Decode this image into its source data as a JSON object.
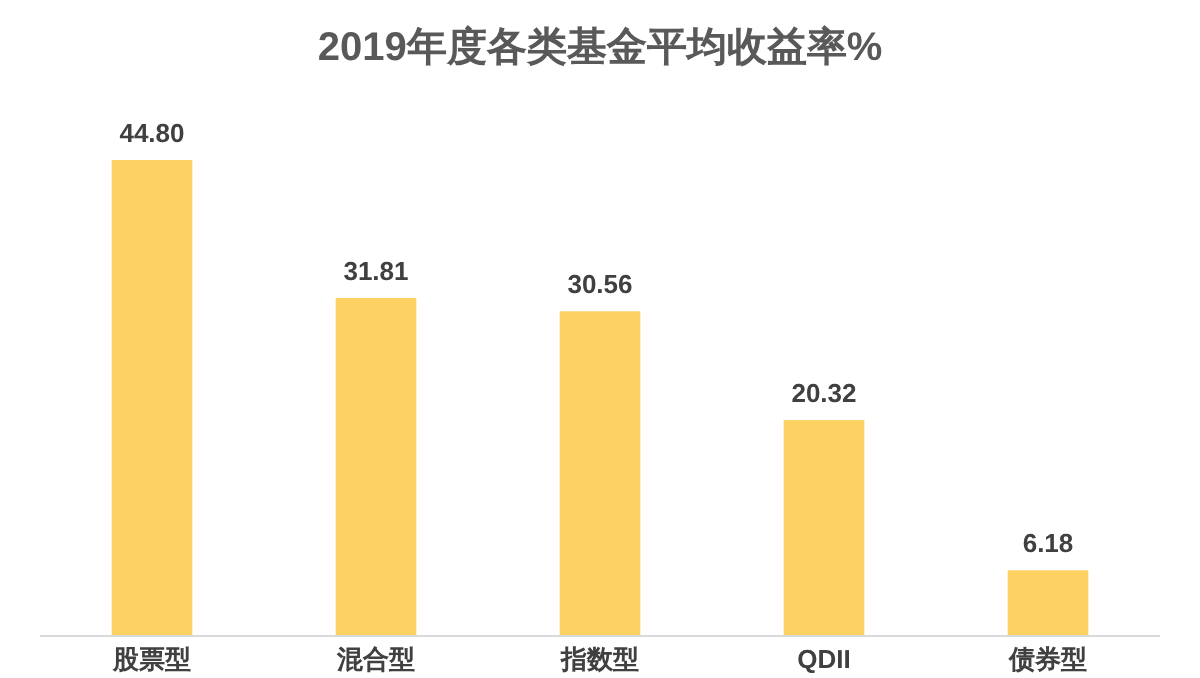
{
  "chart_data": {
    "type": "bar",
    "title": "2019年度各类基金平均收益率%",
    "categories": [
      "股票型",
      "混合型",
      "指数型",
      "QDII",
      "债券型"
    ],
    "values": [
      44.8,
      31.81,
      30.56,
      20.32,
      6.18
    ],
    "value_labels": [
      "44.80",
      "31.81",
      "30.56",
      "20.32",
      "6.18"
    ],
    "color": "#fdd162"
  }
}
